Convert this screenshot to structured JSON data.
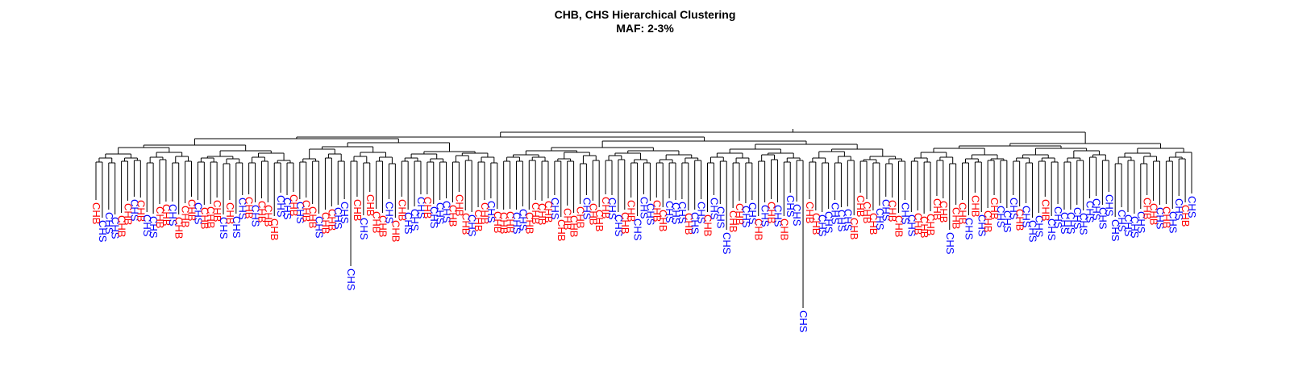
{
  "chart_data": {
    "type": "dendrogram",
    "title": "CHB, CHS Hierarchical Clustering",
    "subtitle": "MAF: 2-3%",
    "group_colors": {
      "CHB": "#ff0000",
      "CHS": "#0000ff"
    },
    "axes_shown": false,
    "leaves": [
      "CHB",
      "CHS",
      "CHS",
      "CHS",
      "CHB",
      "CHB",
      "CHS",
      "CHB",
      "CHS",
      "CHS",
      "CHB",
      "CHB",
      "CHS",
      "CHB",
      "CHB",
      "CHB",
      "CHS",
      "CHB",
      "CHB",
      "CHB",
      "CHS",
      "CHB",
      "CHS",
      "CHS",
      "CHB",
      "CHS",
      "CHB",
      "CHB",
      "CHB",
      "CHS",
      "CHS",
      "CHB",
      "CHS",
      "CHB",
      "CHB",
      "CHS",
      "CHB",
      "CHB",
      "CHS",
      "CHS",
      "CHS",
      "CHB",
      "CHS",
      "CHB",
      "CHB",
      "CHB",
      "CHS",
      "CHB",
      "CHB",
      "CHS",
      "CHS",
      "CHS",
      "CHB",
      "CHS",
      "CHS",
      "CHS",
      "CHB",
      "CHB",
      "CHB",
      "CHS",
      "CHB",
      "CHB",
      "CHS",
      "CHB",
      "CHB",
      "CHB",
      "CHS",
      "CHS",
      "CHB",
      "CHB",
      "CHB",
      "CHB",
      "CHS",
      "CHB",
      "CHB",
      "CHB",
      "CHB",
      "CHS",
      "CHB",
      "CHB",
      "CHB",
      "CHS",
      "CHS",
      "CHB",
      "CHB",
      "CHS",
      "CHS",
      "CHS",
      "CHB",
      "CHB",
      "CHS",
      "CHS",
      "CHS",
      "CHB",
      "CHS",
      "CHS",
      "CHB",
      "CHS",
      "CHS",
      "CHS",
      "CHB",
      "CHB",
      "CHS",
      "CHS",
      "CHB",
      "CHS",
      "CHB",
      "CHS",
      "CHB",
      "CHS",
      "CHS",
      "CHS",
      "CHB",
      "CHB",
      "CHS",
      "CHS",
      "CHS",
      "CHS",
      "CHS",
      "CHB",
      "CHB",
      "CHB",
      "CHB",
      "CHS",
      "CHS",
      "CHB",
      "CHB",
      "CHS",
      "CHS",
      "CHB",
      "CHB",
      "CHB",
      "CHB",
      "CHB",
      "CHS",
      "CHB",
      "CHB",
      "CHS",
      "CHB",
      "CHS",
      "CHB",
      "CHB",
      "CHS",
      "CHS",
      "CHS",
      "CHB",
      "CHS",
      "CHS",
      "CHS",
      "CHB",
      "CHS",
      "CHS",
      "CHS",
      "CHS",
      "CHS",
      "CHS",
      "CHS",
      "CHS",
      "CHS",
      "CHS",
      "CHS",
      "CHS",
      "CHS",
      "CHS",
      "CHS",
      "CHB",
      "CHB",
      "CHS",
      "CHB",
      "CHS",
      "CHS",
      "CHB",
      "CHS"
    ]
  }
}
